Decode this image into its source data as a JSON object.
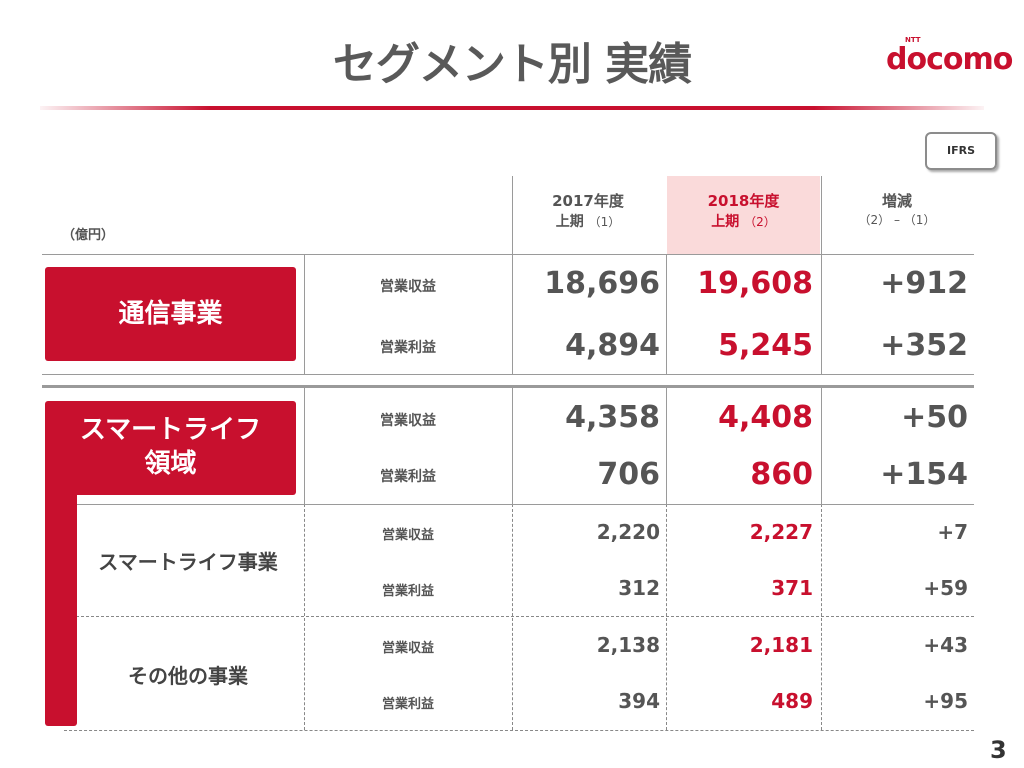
{
  "header": {
    "title": "セグメント別 実績",
    "logo": "docomo",
    "logo_ntt": "NTT",
    "ifrs_badge": "IFRS"
  },
  "unit": "（億円）",
  "columns": {
    "fy2017": {
      "line1": "2017年度",
      "line2": "上期",
      "sub": "（1）"
    },
    "fy2018": {
      "line1": "2018年度",
      "line2": "上期",
      "sub": "（2）"
    },
    "diff": {
      "line1": "増減",
      "line2": "（2） – （1）"
    }
  },
  "colors": {
    "accent": "#c8102e",
    "highlight": "#fadada",
    "text": "#555555"
  },
  "segments": {
    "telecom": {
      "name": "通信事業",
      "revenue": {
        "label": "営業収益",
        "fy2017": "18,696",
        "fy2018": "19,608",
        "diff": "+912"
      },
      "profit": {
        "label": "営業利益",
        "fy2017": "4,894",
        "fy2018": "5,245",
        "diff": "+352"
      }
    },
    "smartlife_domain": {
      "name_line1": "スマートライフ",
      "name_line2": "領域",
      "revenue": {
        "label": "営業収益",
        "fy2017": "4,358",
        "fy2018": "4,408",
        "diff": "+50"
      },
      "profit": {
        "label": "営業利益",
        "fy2017": "706",
        "fy2018": "860",
        "diff": "+154"
      }
    },
    "smartlife_business": {
      "name": "スマートライフ事業",
      "revenue": {
        "label": "営業収益",
        "fy2017": "2,220",
        "fy2018": "2,227",
        "diff": "+7"
      },
      "profit": {
        "label": "営業利益",
        "fy2017": "312",
        "fy2018": "371",
        "diff": "+59"
      }
    },
    "other_business": {
      "name": "その他の事業",
      "revenue": {
        "label": "営業収益",
        "fy2017": "2,138",
        "fy2018": "2,181",
        "diff": "+43"
      },
      "profit": {
        "label": "営業利益",
        "fy2017": "394",
        "fy2018": "489",
        "diff": "+95"
      }
    }
  },
  "page_number": "3"
}
